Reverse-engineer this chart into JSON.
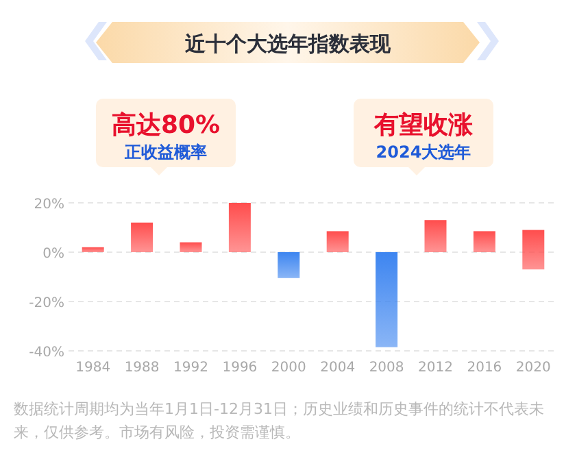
{
  "chart_data": {
    "type": "bar",
    "title": "近十个大选年指数表现",
    "categories": [
      "1984",
      "1988",
      "1992",
      "1996",
      "2000",
      "2004",
      "2008",
      "2012",
      "2016",
      "2020"
    ],
    "values": [
      2,
      12,
      4,
      20,
      -10.5,
      8.5,
      -38.5,
      13,
      8.5,
      16
    ],
    "base": [
      0,
      0,
      0,
      0,
      0,
      0,
      0,
      0,
      0,
      -7
    ],
    "colors": [
      "#ff4d4d",
      "#ff4d4d",
      "#ff4d4d",
      "#ff4d4d",
      "#3d85f0",
      "#ff4d4d",
      "#3d85f0",
      "#ff4d4d",
      "#ff4d4d",
      "#ff4d4d"
    ],
    "ylim": [
      -40,
      20
    ],
    "yticks": [
      {
        "value": -40,
        "label": "-40%"
      },
      {
        "value": -20,
        "label": "-20%"
      },
      {
        "value": 0,
        "label": "0%"
      },
      {
        "value": 20,
        "label": "20%"
      }
    ],
    "grid": "y",
    "annotations": [
      "高达80%",
      "正收益概率",
      "有望收涨",
      "2024大选年",
      "数据统计周期均为当年1月1日-12月31日；历史业绩和历史事件的统计不代表未来，仅供参考。市场有风险，投资需谨慎。"
    ]
  }
}
